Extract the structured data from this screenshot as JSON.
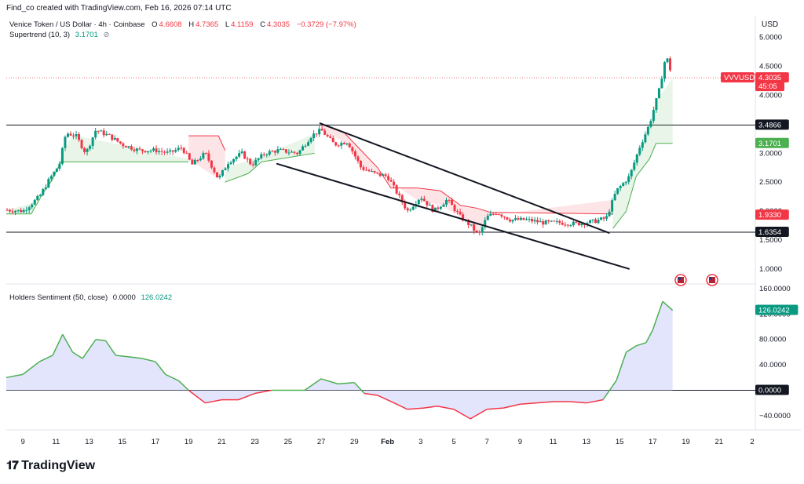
{
  "header": {
    "text": "Find_co created with TradingView.com, Feb 16, 2026 07:14 UTC"
  },
  "legend": {
    "symbol": "Venice Token / US Dollar · 4h · Coinbase",
    "o_label": "O",
    "o": "4.6608",
    "h_label": "H",
    "h": "4.7365",
    "l_label": "L",
    "l": "4.1159",
    "c_label": "C",
    "c": "4.3035",
    "change": "−0.3729 (−7.97%)",
    "supertrend_label": "Supertrend (10, 3)",
    "supertrend_value": "3.1701",
    "holders_label": "Holders Sentiment (50, close)",
    "holders_v1": "0.0000",
    "holders_v2": "126.0242"
  },
  "currency": "USD",
  "price_tags": {
    "symbol": "VVVUSD",
    "price": "4.3035",
    "countdown": "45:05",
    "level_high": "3.4866",
    "supertrend": "3.1701",
    "red_level": "1.9330",
    "level_low": "1.6354",
    "holders_value": "126.0242",
    "holders_zero": "0.0000"
  },
  "footer": {
    "brand": "TradingView"
  },
  "colors": {
    "up": "#089981",
    "down": "#f23645",
    "super_up": "#4caf50",
    "super_down": "#f23645",
    "sentiment_line": "#4caf50",
    "sentiment_pos_fill": "#d1d4fc",
    "sentiment_neg_line": "#f23645"
  },
  "chart_data": [
    {
      "type": "candlestick",
      "title": "Venice Token / US Dollar · 4h · Coinbase",
      "y_ticks": [
        "1.0000",
        "1.5000",
        "2.0000",
        "2.5000",
        "3.0000",
        "3.5000",
        "4.0000",
        "4.5000",
        "5.0000"
      ],
      "ylim": [
        0.85,
        5.05
      ],
      "x_ticks": [
        "9",
        "11",
        "13",
        "15",
        "17",
        "19",
        "21",
        "23",
        "25",
        "27",
        "29",
        "Feb",
        "3",
        "5",
        "7",
        "9",
        "11",
        "13",
        "15",
        "17",
        "19",
        "21",
        "2"
      ],
      "horizontal_levels": [
        3.4866,
        1.6354
      ],
      "trend_channel": {
        "upper": [
          [
            26.9,
            3.52
          ],
          [
            44.4,
            1.62
          ]
        ],
        "lower": [
          [
            24.3,
            2.82
          ],
          [
            45.6,
            1.0
          ]
        ]
      },
      "price_path": [
        [
          8.0,
          2.02
        ],
        [
          9.0,
          2.0
        ],
        [
          10.0,
          2.25
        ],
        [
          10.6,
          2.55
        ],
        [
          11.2,
          2.8
        ],
        [
          11.6,
          3.35
        ],
        [
          12.2,
          3.3
        ],
        [
          12.8,
          3.0
        ],
        [
          13.4,
          3.4
        ],
        [
          14.2,
          3.3
        ],
        [
          15.0,
          3.15
        ],
        [
          16.0,
          3.05
        ],
        [
          17.0,
          3.05
        ],
        [
          17.8,
          3.0
        ],
        [
          18.6,
          3.1
        ],
        [
          19.2,
          2.8
        ],
        [
          20.0,
          3.0
        ],
        [
          20.8,
          2.55
        ],
        [
          21.4,
          2.85
        ],
        [
          22.2,
          3.0
        ],
        [
          22.8,
          2.8
        ],
        [
          23.6,
          3.0
        ],
        [
          24.4,
          3.05
        ],
        [
          25.6,
          3.0
        ],
        [
          26.4,
          3.3
        ],
        [
          27.0,
          3.4
        ],
        [
          27.8,
          3.15
        ],
        [
          28.6,
          3.2
        ],
        [
          29.4,
          2.75
        ],
        [
          30.2,
          2.65
        ],
        [
          31.0,
          2.6
        ],
        [
          31.6,
          2.3
        ],
        [
          32.2,
          2.0
        ],
        [
          33.0,
          2.25
        ],
        [
          33.8,
          2.0
        ],
        [
          34.6,
          2.2
        ],
        [
          35.4,
          1.9
        ],
        [
          36.0,
          1.75
        ],
        [
          36.5,
          1.58
        ],
        [
          37.0,
          1.9
        ],
        [
          37.6,
          1.98
        ],
        [
          38.4,
          1.85
        ],
        [
          39.4,
          1.85
        ],
        [
          40.4,
          1.8
        ],
        [
          41.4,
          1.8
        ],
        [
          42.4,
          1.78
        ],
        [
          43.4,
          1.82
        ],
        [
          44.2,
          1.88
        ],
        [
          44.8,
          2.35
        ],
        [
          45.6,
          2.6
        ],
        [
          46.2,
          3.1
        ],
        [
          46.8,
          3.5
        ],
        [
          47.4,
          4.1
        ],
        [
          47.8,
          4.7
        ],
        [
          48.2,
          4.3
        ]
      ],
      "supertrend_segments": [
        {
          "trend": "up",
          "points": [
            [
              8.0,
              1.95
            ],
            [
              9.5,
              1.95
            ],
            [
              10.2,
              2.3
            ],
            [
              10.8,
              2.55
            ],
            [
              11.3,
              2.85
            ],
            [
              12.0,
              2.85
            ],
            [
              19.0,
              2.85
            ],
            [
              19.0,
              2.85
            ]
          ]
        },
        {
          "trend": "down",
          "points": [
            [
              19.0,
              3.3
            ],
            [
              20.8,
              3.3
            ],
            [
              21.2,
              3.05
            ]
          ]
        },
        {
          "trend": "up",
          "points": [
            [
              21.2,
              2.5
            ],
            [
              22.6,
              2.65
            ],
            [
              23.4,
              2.85
            ],
            [
              26.6,
              3.0
            ]
          ]
        },
        {
          "trend": "down",
          "points": [
            [
              27.0,
              3.5
            ],
            [
              28.4,
              3.35
            ],
            [
              29.4,
              3.05
            ],
            [
              30.4,
              2.75
            ],
            [
              31.2,
              2.4
            ],
            [
              32.8,
              2.4
            ],
            [
              34.2,
              2.35
            ],
            [
              35.4,
              2.1
            ],
            [
              36.4,
              2.05
            ],
            [
              37.2,
              1.98
            ],
            [
              44.6,
              1.95
            ]
          ]
        },
        {
          "trend": "up",
          "points": [
            [
              44.6,
              1.7
            ],
            [
              45.4,
              2.0
            ],
            [
              46.0,
              2.6
            ],
            [
              46.8,
              2.9
            ],
            [
              47.2,
              3.17
            ],
            [
              48.2,
              3.17
            ]
          ]
        }
      ]
    },
    {
      "type": "line",
      "title": "Holders Sentiment (50, close)",
      "y_ticks": [
        "−40.0000",
        "0.0000",
        "40.0000",
        "80.0000",
        "120.0000",
        "160.0000"
      ],
      "ylim": [
        -55,
        160
      ],
      "series": [
        {
          "name": "Holders Sentiment",
          "points": [
            [
              8.0,
              20
            ],
            [
              9.0,
              25
            ],
            [
              10.0,
              45
            ],
            [
              10.8,
              55
            ],
            [
              11.4,
              88
            ],
            [
              12.0,
              60
            ],
            [
              12.6,
              50
            ],
            [
              13.4,
              80
            ],
            [
              14.0,
              78
            ],
            [
              14.6,
              55
            ],
            [
              15.6,
              52
            ],
            [
              16.2,
              50
            ],
            [
              17.0,
              45
            ],
            [
              17.6,
              25
            ],
            [
              18.4,
              15
            ],
            [
              19.0,
              0
            ],
            [
              20.0,
              -20
            ],
            [
              21.0,
              -15
            ],
            [
              22.0,
              -15
            ],
            [
              23.0,
              -5
            ],
            [
              24.0,
              0
            ],
            [
              25.0,
              0
            ],
            [
              26.0,
              0
            ],
            [
              27.0,
              18
            ],
            [
              28.0,
              10
            ],
            [
              29.0,
              12
            ],
            [
              29.6,
              -5
            ],
            [
              30.4,
              -8
            ],
            [
              31.4,
              -20
            ],
            [
              32.2,
              -30
            ],
            [
              33.2,
              -28
            ],
            [
              34.0,
              -25
            ],
            [
              35.0,
              -30
            ],
            [
              36.0,
              -45
            ],
            [
              37.0,
              -30
            ],
            [
              38.0,
              -28
            ],
            [
              39.0,
              -22
            ],
            [
              40.0,
              -20
            ],
            [
              41.0,
              -18
            ],
            [
              42.0,
              -18
            ],
            [
              43.0,
              -20
            ],
            [
              44.0,
              -15
            ],
            [
              44.8,
              15
            ],
            [
              45.4,
              60
            ],
            [
              46.0,
              70
            ],
            [
              46.6,
              75
            ],
            [
              47.0,
              95
            ],
            [
              47.6,
              140
            ],
            [
              48.2,
              126
            ]
          ]
        }
      ]
    }
  ]
}
